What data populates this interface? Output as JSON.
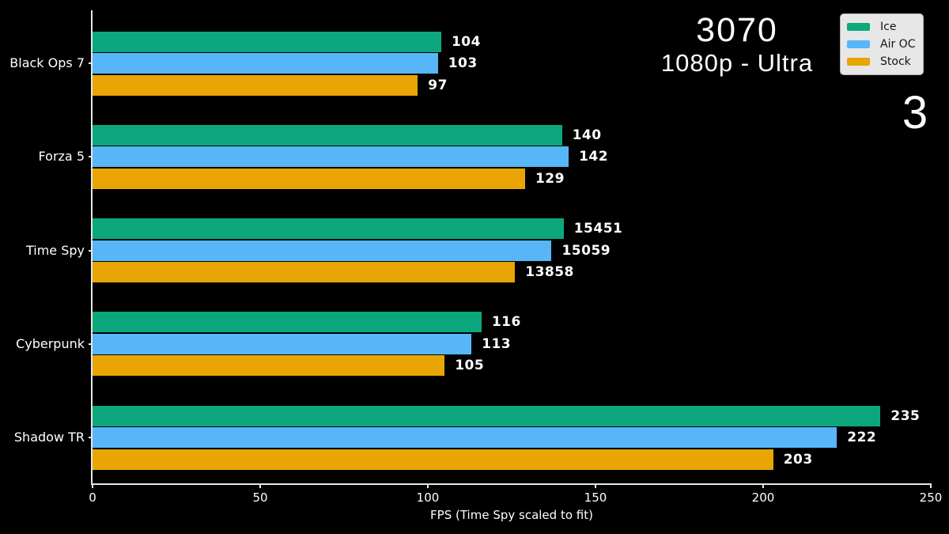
{
  "page": {
    "background": "#000000",
    "slide_number": "3"
  },
  "title": {
    "line1": "3070",
    "line2": "1080p - Ultra"
  },
  "legend": {
    "position": "top-right",
    "background": "#e7e7e7",
    "items": [
      {
        "label": "Ice",
        "color": "#0ca77c"
      },
      {
        "label": "Air OC",
        "color": "#57b6f7"
      },
      {
        "label": "Stock",
        "color": "#e8a503"
      }
    ]
  },
  "chart_data": {
    "type": "bar",
    "orientation": "horizontal",
    "title": "3070 1080p - Ultra",
    "xlabel": "FPS (Time Spy scaled to fit)",
    "xlim": [
      0,
      250
    ],
    "x_ticks": [
      0,
      50,
      100,
      150,
      200,
      250
    ],
    "grid": false,
    "categories": [
      "Black Ops 7",
      "Forza 5",
      "Time Spy",
      "Cyberpunk",
      "Shadow TR"
    ],
    "series": [
      {
        "name": "Ice",
        "color": "#0ca77c",
        "values": [
          104,
          140,
          15451,
          116,
          235
        ],
        "display_values": [
          104,
          140,
          140.5,
          116,
          235
        ]
      },
      {
        "name": "Air OC",
        "color": "#57b6f7",
        "values": [
          103,
          142,
          15059,
          113,
          222
        ],
        "display_values": [
          103,
          142,
          136.9,
          113,
          222
        ]
      },
      {
        "name": "Stock",
        "color": "#e8a503",
        "values": [
          97,
          129,
          13858,
          105,
          203
        ],
        "display_values": [
          97,
          129,
          126,
          105,
          203
        ]
      }
    ],
    "note_from_xlabel": "Time Spy scores are scaled down to fit the FPS axis"
  }
}
